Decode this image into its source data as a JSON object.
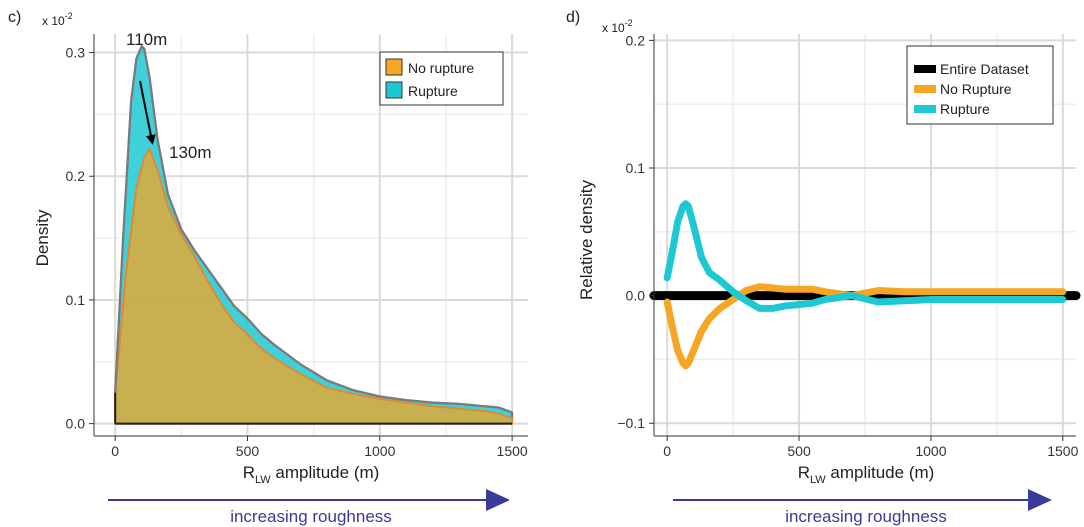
{
  "chart_data": [
    {
      "panel": "c)",
      "type": "area",
      "xlabel": "R",
      "xlabel_sub": "LW",
      "xlabel_rest": " amplitude (m)",
      "ylabel": "Density",
      "y_multiplier": "x 10",
      "y_multiplier_exp": "-2",
      "xlim": [
        -80,
        1560
      ],
      "ylim": [
        -0.01,
        0.315
      ],
      "xticks": [
        0,
        500,
        1000,
        1500
      ],
      "yticks": [
        0.0,
        0.1,
        0.2,
        0.3
      ],
      "ytick_labels": [
        "0.0",
        "0.1",
        "0.2",
        "0.3"
      ],
      "grid": true,
      "legend_position": "top-right",
      "series": [
        {
          "name": "No rupture",
          "color": "#f5a623",
          "x": [
            0,
            40,
            80,
            110,
            130,
            160,
            200,
            250,
            300,
            350,
            400,
            450,
            500,
            550,
            600,
            700,
            800,
            900,
            1000,
            1100,
            1200,
            1300,
            1400,
            1450,
            1500
          ],
          "y": [
            0.024,
            0.12,
            0.19,
            0.215,
            0.222,
            0.205,
            0.175,
            0.153,
            0.135,
            0.115,
            0.097,
            0.082,
            0.072,
            0.061,
            0.053,
            0.04,
            0.029,
            0.024,
            0.02,
            0.017,
            0.014,
            0.012,
            0.01,
            0.008,
            0.004
          ]
        },
        {
          "name": "Rupture",
          "color": "#1ec8d2",
          "x": [
            0,
            30,
            60,
            80,
            100,
            110,
            130,
            160,
            200,
            250,
            300,
            350,
            400,
            450,
            500,
            550,
            600,
            700,
            800,
            900,
            1000,
            1100,
            1200,
            1300,
            1400,
            1450,
            1500
          ],
          "y": [
            0.025,
            0.15,
            0.26,
            0.295,
            0.305,
            0.303,
            0.28,
            0.23,
            0.185,
            0.157,
            0.14,
            0.125,
            0.11,
            0.095,
            0.085,
            0.073,
            0.064,
            0.048,
            0.035,
            0.027,
            0.022,
            0.019,
            0.017,
            0.016,
            0.014,
            0.013,
            0.009
          ]
        }
      ],
      "annotations": [
        {
          "text": "110m",
          "x": 110,
          "y": 0.305
        },
        {
          "text": "130m",
          "x": 130,
          "y": 0.222
        }
      ],
      "footer": "increasing roughness"
    },
    {
      "panel": "d)",
      "type": "line",
      "xlabel": "R",
      "xlabel_sub": "LW",
      "xlabel_rest": " amplitude (m)",
      "ylabel": "Relative density",
      "y_multiplier": "x 10",
      "y_multiplier_exp": "-2",
      "xlim": [
        -50,
        1550
      ],
      "ylim": [
        -0.11,
        0.205
      ],
      "xticks": [
        0,
        500,
        1000,
        1500
      ],
      "yticks": [
        -0.1,
        0.0,
        0.1,
        0.2
      ],
      "ytick_labels": [
        "−0.1",
        "0.0",
        "0.1",
        "0.2"
      ],
      "grid": true,
      "legend_position": "top-right",
      "series": [
        {
          "name": "Entire Dataset",
          "color": "#000000",
          "x": [
            -50,
            1550
          ],
          "y": [
            0.0,
            0.0
          ]
        },
        {
          "name": "No Rupture",
          "color": "#f5a623",
          "x": [
            0,
            20,
            40,
            60,
            70,
            80,
            100,
            130,
            160,
            200,
            250,
            300,
            350,
            400,
            450,
            500,
            550,
            600,
            700,
            800,
            900,
            1000,
            1100,
            1200,
            1300,
            1400,
            1500
          ],
          "y": [
            -0.005,
            -0.025,
            -0.043,
            -0.053,
            -0.055,
            -0.053,
            -0.043,
            -0.028,
            -0.018,
            -0.01,
            -0.003,
            0.004,
            0.007,
            0.006,
            0.005,
            0.005,
            0.005,
            0.003,
            0.0,
            0.004,
            0.003,
            0.003,
            0.003,
            0.003,
            0.003,
            0.003,
            0.003
          ]
        },
        {
          "name": "Rupture",
          "color": "#1ec8d2",
          "x": [
            0,
            20,
            40,
            60,
            70,
            80,
            100,
            130,
            160,
            200,
            250,
            300,
            350,
            400,
            450,
            500,
            550,
            600,
            700,
            800,
            900,
            1000,
            1100,
            1200,
            1300,
            1400,
            1500
          ],
          "y": [
            0.014,
            0.035,
            0.058,
            0.07,
            0.072,
            0.07,
            0.055,
            0.03,
            0.018,
            0.012,
            0.003,
            -0.004,
            -0.01,
            -0.01,
            -0.008,
            -0.007,
            -0.006,
            -0.003,
            0.0,
            -0.005,
            -0.004,
            -0.003,
            -0.003,
            -0.003,
            -0.003,
            -0.003,
            -0.003
          ]
        }
      ],
      "footer": "increasing roughness"
    }
  ]
}
